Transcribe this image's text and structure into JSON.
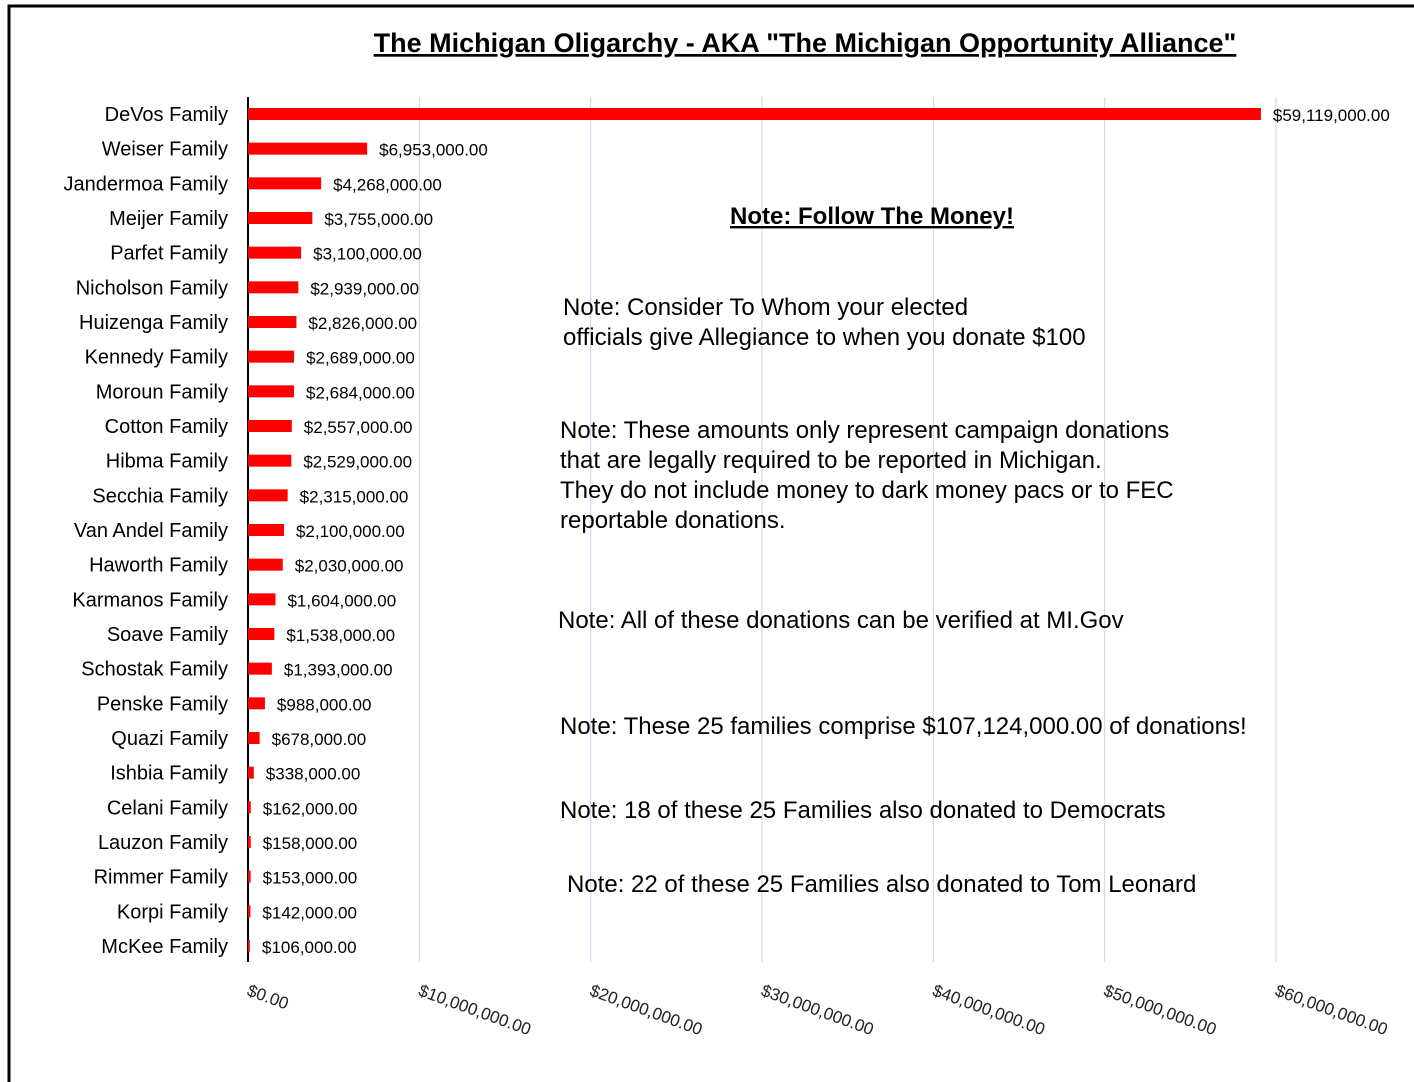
{
  "chart_data": {
    "type": "bar",
    "orientation": "horizontal",
    "title": "The Michigan Oligarchy - AKA \"The Michigan Opportunity Alliance\"",
    "categories": [
      "DeVos Family",
      "Weiser Family",
      "Jandermoa Family",
      "Meijer Family",
      "Parfet Family",
      "Nicholson Family",
      "Huizenga Family",
      "Kennedy Family",
      "Moroun Family",
      "Cotton Family",
      "Hibma Family",
      "Secchia Family",
      "Van Andel Family",
      "Haworth Family",
      "Karmanos Family",
      "Soave Family",
      "Schostak Family",
      "Penske Family",
      "Quazi Family",
      "Ishbia Family",
      "Celani Family",
      "Lauzon Family",
      "Rimmer Family",
      "Korpi Family",
      "McKee Family"
    ],
    "values": [
      59119000,
      6953000,
      4268000,
      3755000,
      3100000,
      2939000,
      2826000,
      2689000,
      2684000,
      2557000,
      2529000,
      2315000,
      2100000,
      2030000,
      1604000,
      1538000,
      1393000,
      988000,
      678000,
      338000,
      162000,
      158000,
      153000,
      142000,
      106000
    ],
    "value_labels": [
      "$59,119,000.00",
      "$6,953,000.00",
      "$4,268,000.00",
      "$3,755,000.00",
      "$3,100,000.00",
      "$2,939,000.00",
      "$2,826,000.00",
      "$2,689,000.00",
      "$2,684,000.00",
      "$2,557,000.00",
      "$2,529,000.00",
      "$2,315,000.00",
      "$2,100,000.00",
      "$2,030,000.00",
      "$1,604,000.00",
      "$1,538,000.00",
      "$1,393,000.00",
      "$988,000.00",
      "$678,000.00",
      "$338,000.00",
      "$162,000.00",
      "$158,000.00",
      "$153,000.00",
      "$142,000.00",
      "$106,000.00"
    ],
    "color": "#ff0000",
    "xlim": [
      0,
      60000000
    ],
    "xticks": [
      {
        "value": 0,
        "label": "$0.00"
      },
      {
        "value": 10000000,
        "label": "$10,000,000.00"
      },
      {
        "value": 20000000,
        "label": "$20,000,000.00"
      },
      {
        "value": 30000000,
        "label": "$30,000,000.00"
      },
      {
        "value": 40000000,
        "label": "$40,000,000.00"
      },
      {
        "value": 50000000,
        "label": "$50,000,000.00"
      },
      {
        "value": 60000000,
        "label": "$60,000,000.00"
      }
    ],
    "grid": true,
    "annotations": [
      [
        "Note: Follow The Money!"
      ],
      [
        "Note: Consider To Whom your elected",
        "officials  give Allegiance to when you donate $100"
      ],
      [
        "Note: These amounts only represent campaign donations",
        " that are legally required to be reported in Michigan.",
        "They do not include money to dark money pacs or to FEC",
        "reportable donations."
      ],
      [
        "Note: All of these donations can be verified at MI.Gov"
      ],
      [
        "Note: These 25 families comprise $107,124,000.00 of donations!"
      ],
      [
        "Note: 18 of these 25 Families also donated to Democrats"
      ],
      [
        "Note: 22 of these 25 Families also donated to Tom Leonard"
      ]
    ]
  }
}
